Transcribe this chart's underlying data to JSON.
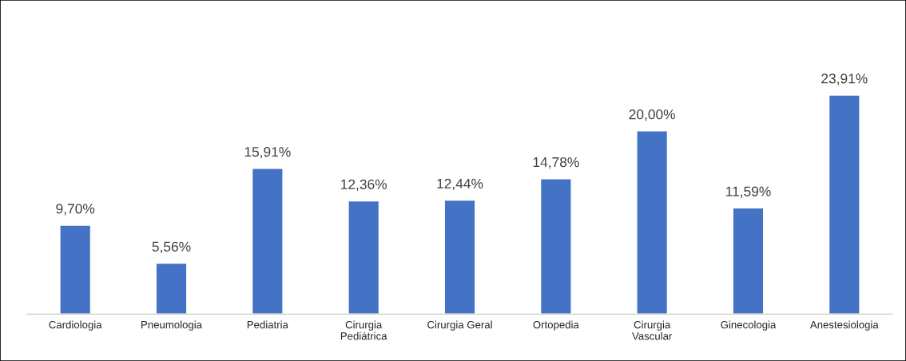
{
  "chart_data": {
    "type": "bar",
    "categories": [
      "Cardiologia",
      "Pneumologia",
      "Pediatria",
      "Cirurgia\nPediátrica",
      "Cirurgia Geral",
      "Ortopedia",
      "Cirurgia\nVascular",
      "Ginecologia",
      "Anestesiologia"
    ],
    "values": [
      9.7,
      5.56,
      15.91,
      12.36,
      12.44,
      14.78,
      20.0,
      11.59,
      23.91
    ],
    "value_labels": [
      "9,70%",
      "5,56%",
      "15,91%",
      "12,36%",
      "12,44%",
      "14,78%",
      "20,00%",
      "11,59%",
      "23,91%"
    ],
    "color": "#4472c4",
    "grid": false,
    "legend": false
  }
}
